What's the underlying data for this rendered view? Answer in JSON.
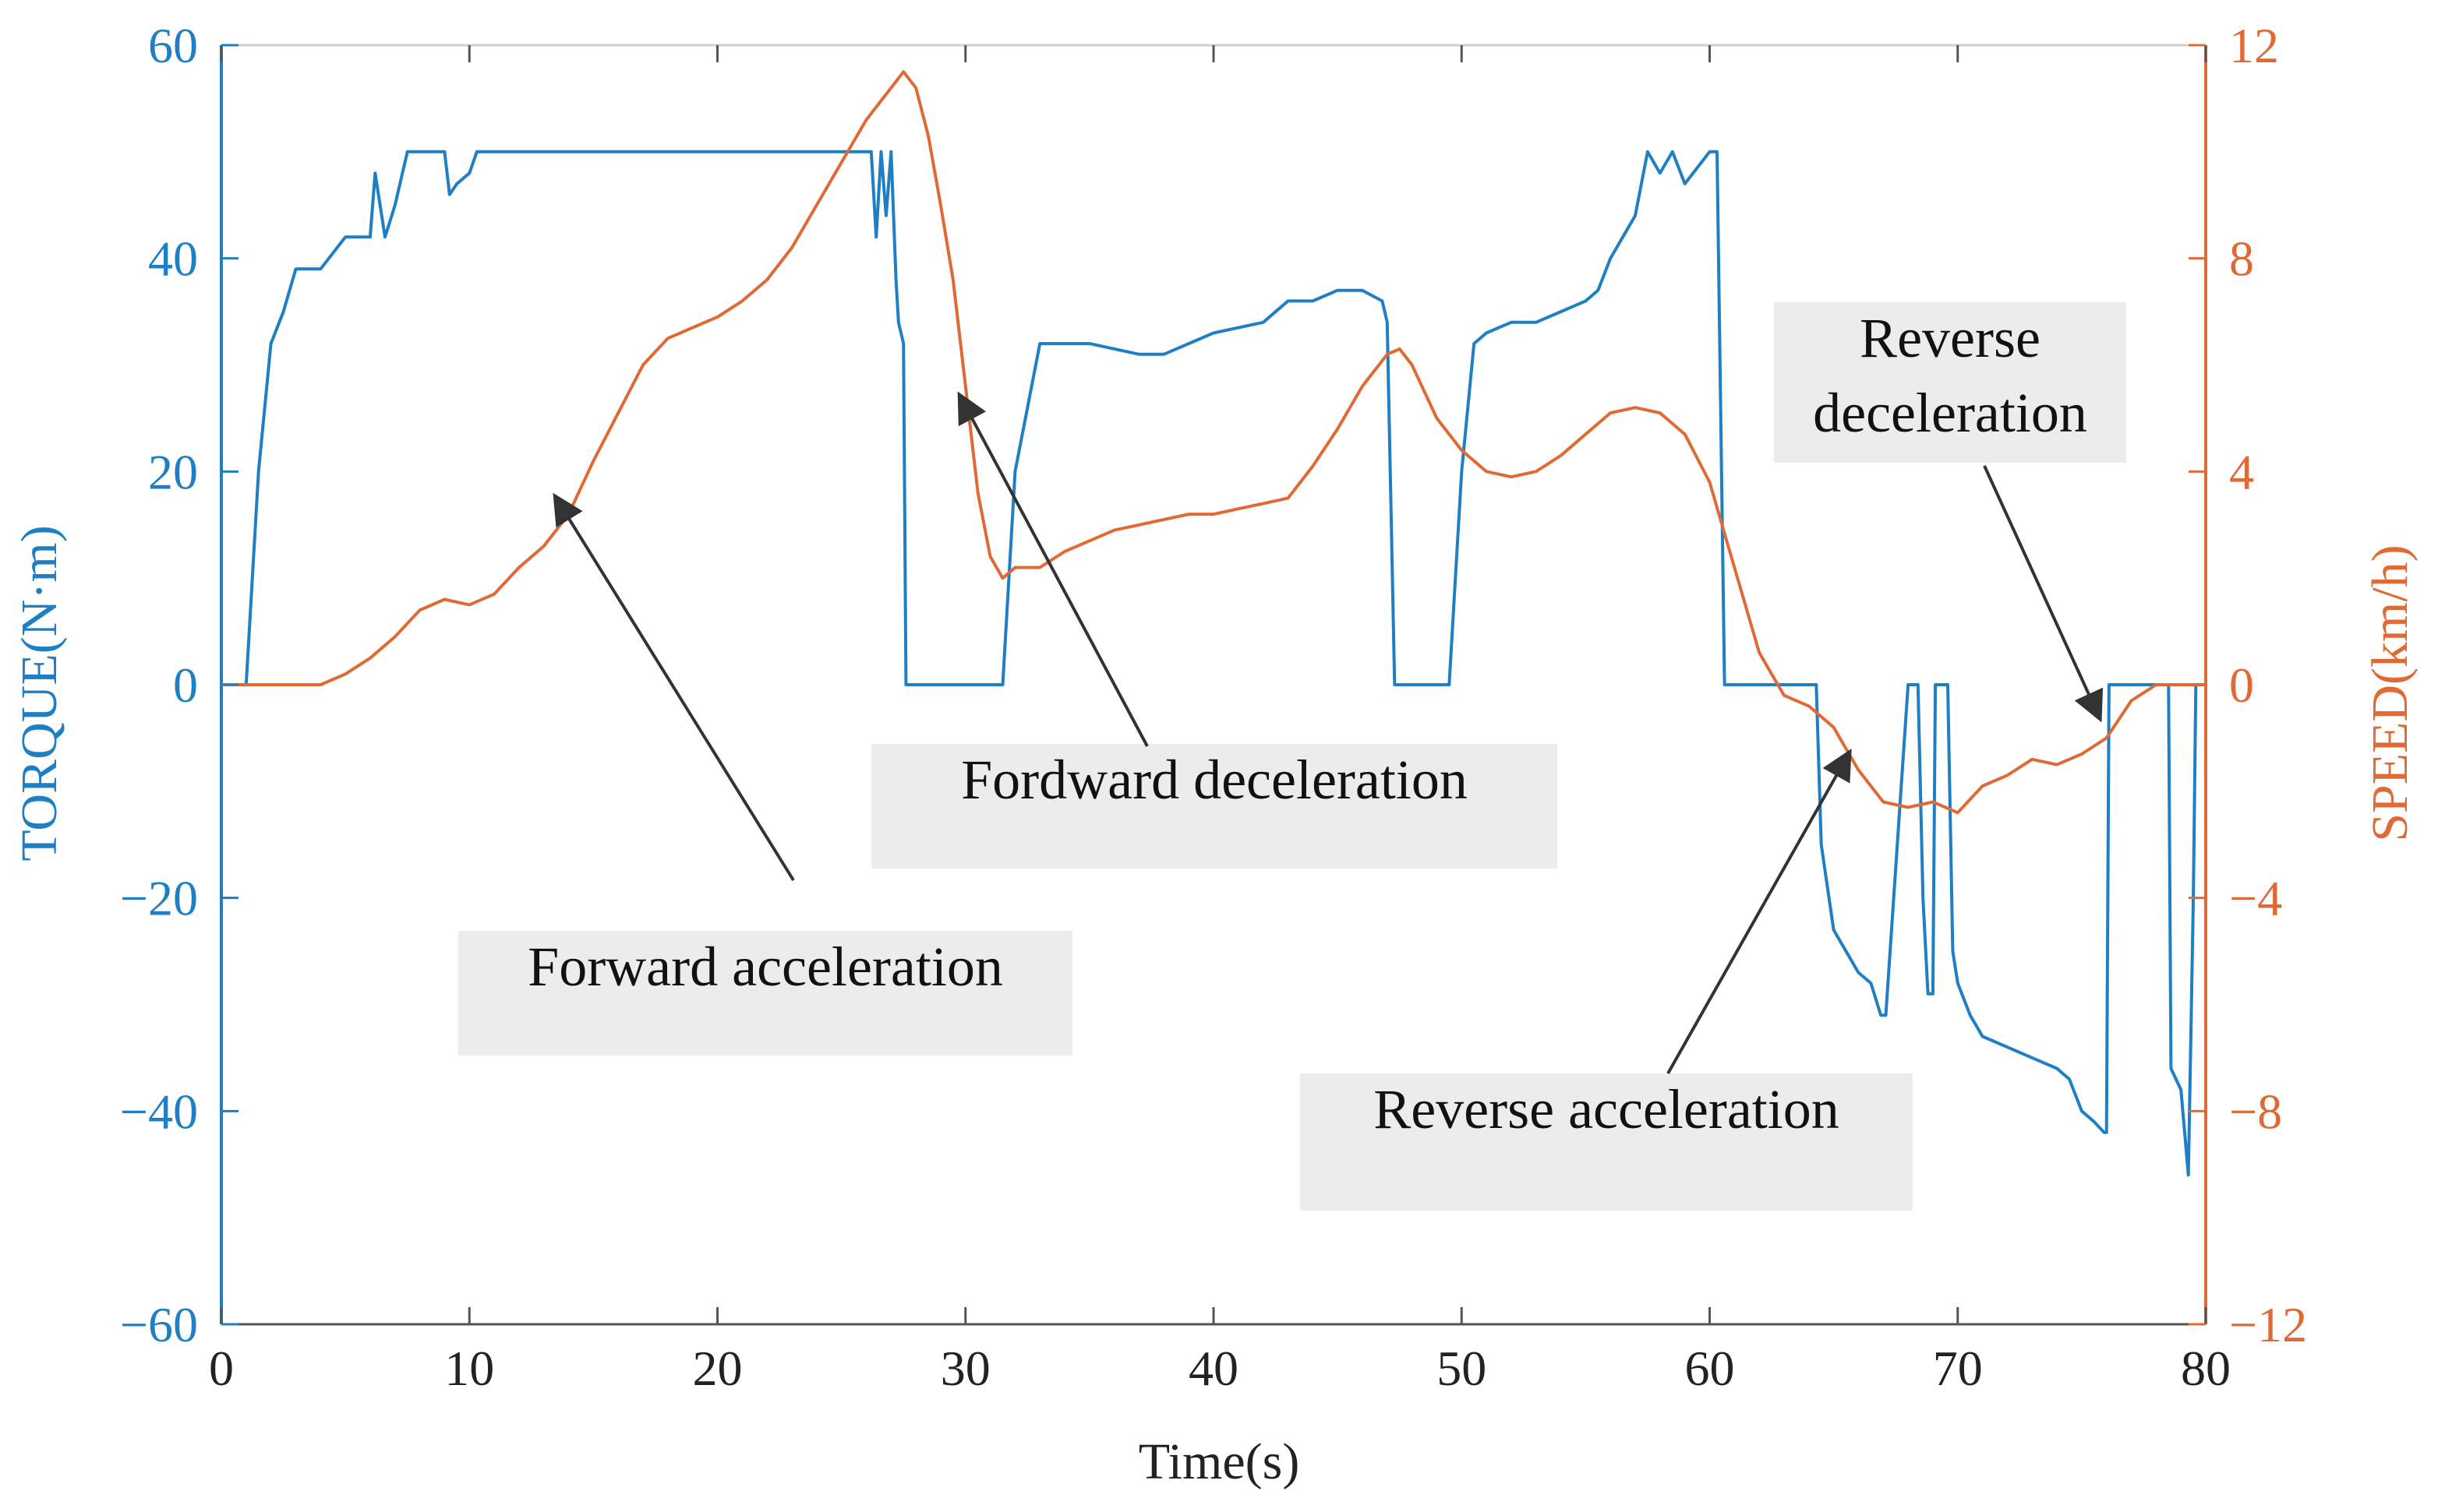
{
  "chart_data": {
    "type": "line",
    "title": "",
    "xlabel": "Time(s)",
    "ylabel_left": "TORQUE(N·m)",
    "ylabel_right": "SPEED(km/h)",
    "xlim": [
      0,
      80
    ],
    "ylim_left": [
      -60,
      60
    ],
    "ylim_right": [
      -12,
      12
    ],
    "x_ticks": [
      0,
      10,
      20,
      30,
      40,
      50,
      60,
      70,
      80
    ],
    "x_tick_labels": [
      "0",
      "10",
      "20",
      "30",
      "40",
      "50",
      "60",
      "70",
      "80"
    ],
    "y_left_ticks": [
      60,
      40,
      20,
      0,
      -20,
      -40,
      -60
    ],
    "y_left_tick_labels": [
      "60",
      "40",
      "20",
      "0",
      "−20",
      "−40",
      "−60"
    ],
    "y_right_ticks": [
      12,
      8,
      4,
      0,
      -4,
      -8,
      -12
    ],
    "y_right_tick_labels": [
      "12",
      "8",
      "4",
      "0",
      "−4",
      "−8",
      "−12"
    ],
    "grid": false,
    "colors": {
      "torque": "#1f7fc4",
      "speed": "#e06a35",
      "annotation_bg": "#ececec",
      "arrow": "#333333"
    },
    "series": [
      {
        "name": "Torque",
        "axis": "left",
        "x": [
          0,
          1.0,
          1.5,
          2.0,
          2.5,
          3.0,
          4.0,
          5.0,
          6.0,
          6.2,
          6.6,
          7.0,
          7.5,
          8.0,
          9.0,
          9.2,
          9.5,
          10.0,
          10.3,
          26.0,
          26.2,
          26.4,
          26.6,
          26.8,
          27.0,
          27.2,
          27.3,
          27.5,
          27.6,
          28.0,
          30.0,
          31.5,
          32.0,
          33.0,
          35.0,
          37.0,
          38.0,
          39.0,
          40.0,
          42.0,
          43.0,
          44.0,
          45.0,
          46.0,
          46.8,
          47.0,
          47.3,
          49.5,
          50.0,
          50.5,
          51.0,
          52.0,
          53.0,
          54.0,
          55.0,
          55.5,
          56.0,
          56.5,
          57.0,
          57.5,
          58.0,
          58.5,
          59.0,
          60.0,
          60.3,
          60.6,
          61.0,
          62.0,
          64.0,
          64.3,
          64.5,
          65.0,
          66.0,
          66.5,
          66.9,
          67.0,
          67.1,
          68.0,
          68.1,
          68.2,
          68.4,
          68.6,
          68.8,
          69.0,
          69.1,
          69.2,
          69.4,
          69.6,
          69.8,
          70.0,
          70.5,
          71.0,
          72.0,
          73.0,
          74.0,
          74.5,
          75.0,
          75.5,
          75.9,
          76.0,
          76.1,
          77.0,
          77.5,
          78.0,
          78.5,
          78.6,
          79.0,
          79.3,
          79.5,
          79.6,
          79.7
        ],
        "values": [
          0,
          0,
          20,
          32,
          35,
          39,
          39,
          42,
          42,
          48,
          42,
          45,
          50,
          50,
          50,
          46,
          47,
          48,
          50,
          50,
          50,
          42,
          50,
          44,
          50,
          38,
          34,
          32,
          0,
          0,
          0,
          0,
          20,
          32,
          32,
          31,
          31,
          32,
          33,
          34,
          36,
          36,
          37,
          37,
          36,
          34,
          0,
          0,
          20,
          32,
          33,
          34,
          34,
          35,
          36,
          37,
          40,
          42,
          44,
          50,
          48,
          50,
          47,
          50,
          50,
          0,
          0,
          0,
          0,
          0,
          -15,
          -23,
          -27,
          -28,
          -31,
          -31,
          -31,
          0,
          0,
          0,
          0,
          -20,
          -29,
          -29,
          0,
          0,
          0,
          0,
          -25,
          -28,
          -31,
          -33,
          -34,
          -35,
          -36,
          -37,
          -40,
          -41,
          -42,
          -42,
          0,
          0,
          0,
          0,
          0,
          -36,
          -38,
          -46,
          -20,
          0,
          0
        ]
      },
      {
        "name": "Speed",
        "axis": "right",
        "x": [
          0,
          1,
          2,
          3,
          4,
          5,
          6,
          7,
          8,
          9,
          10,
          11,
          12,
          13,
          14,
          15,
          16,
          17,
          18,
          19,
          20,
          21,
          22,
          23,
          24,
          25,
          26,
          27,
          27.5,
          28,
          28.5,
          29,
          29.5,
          30,
          30.5,
          31,
          31.5,
          32,
          33,
          34,
          35,
          36,
          37,
          38,
          39,
          40,
          41,
          42,
          43,
          44,
          45,
          46,
          47,
          47.5,
          48,
          49,
          50,
          51,
          52,
          53,
          54,
          55,
          56,
          57,
          58,
          59,
          60,
          61,
          62,
          63,
          64,
          65,
          66,
          67,
          68,
          69,
          70,
          71,
          72,
          73,
          74,
          75,
          76,
          77,
          78,
          79,
          80
        ],
        "values": [
          0,
          0,
          0,
          0,
          0,
          0.2,
          0.5,
          0.9,
          1.4,
          1.6,
          1.5,
          1.7,
          2.2,
          2.6,
          3.2,
          4.2,
          5.1,
          6,
          6.5,
          6.7,
          6.9,
          7.2,
          7.6,
          8.2,
          9,
          9.8,
          10.6,
          11.2,
          11.5,
          11.2,
          10.3,
          9,
          7.6,
          5.6,
          3.6,
          2.4,
          2.0,
          2.2,
          2.2,
          2.5,
          2.7,
          2.9,
          3.0,
          3.1,
          3.2,
          3.2,
          3.3,
          3.4,
          3.5,
          4.1,
          4.8,
          5.6,
          6.2,
          6.3,
          6.0,
          5.0,
          4.4,
          4.0,
          3.9,
          4.0,
          4.3,
          4.7,
          5.1,
          5.2,
          5.1,
          4.7,
          3.8,
          2.2,
          0.6,
          -0.2,
          -0.4,
          -0.8,
          -1.6,
          -2.2,
          -2.3,
          -2.2,
          -2.4,
          -1.9,
          -1.7,
          -1.4,
          -1.5,
          -1.3,
          -1.0,
          -0.3,
          0,
          0,
          0
        ]
      }
    ],
    "annotations": [
      {
        "text": "Forward acceleration",
        "target_x": 13.5,
        "target_y_right": 3.5,
        "axis": "right"
      },
      {
        "text": "Fordward deceleration",
        "target_x": 29.8,
        "target_y_right": 5.4,
        "axis": "right"
      },
      {
        "text": "Reverse acceleration",
        "target_x": 65.6,
        "target_y_right": -1.3,
        "axis": "right"
      },
      {
        "text_lines": [
          "Reverse",
          "deceleration"
        ],
        "target_x": 75.7,
        "target_y_right": -0.6,
        "axis": "right"
      }
    ]
  }
}
